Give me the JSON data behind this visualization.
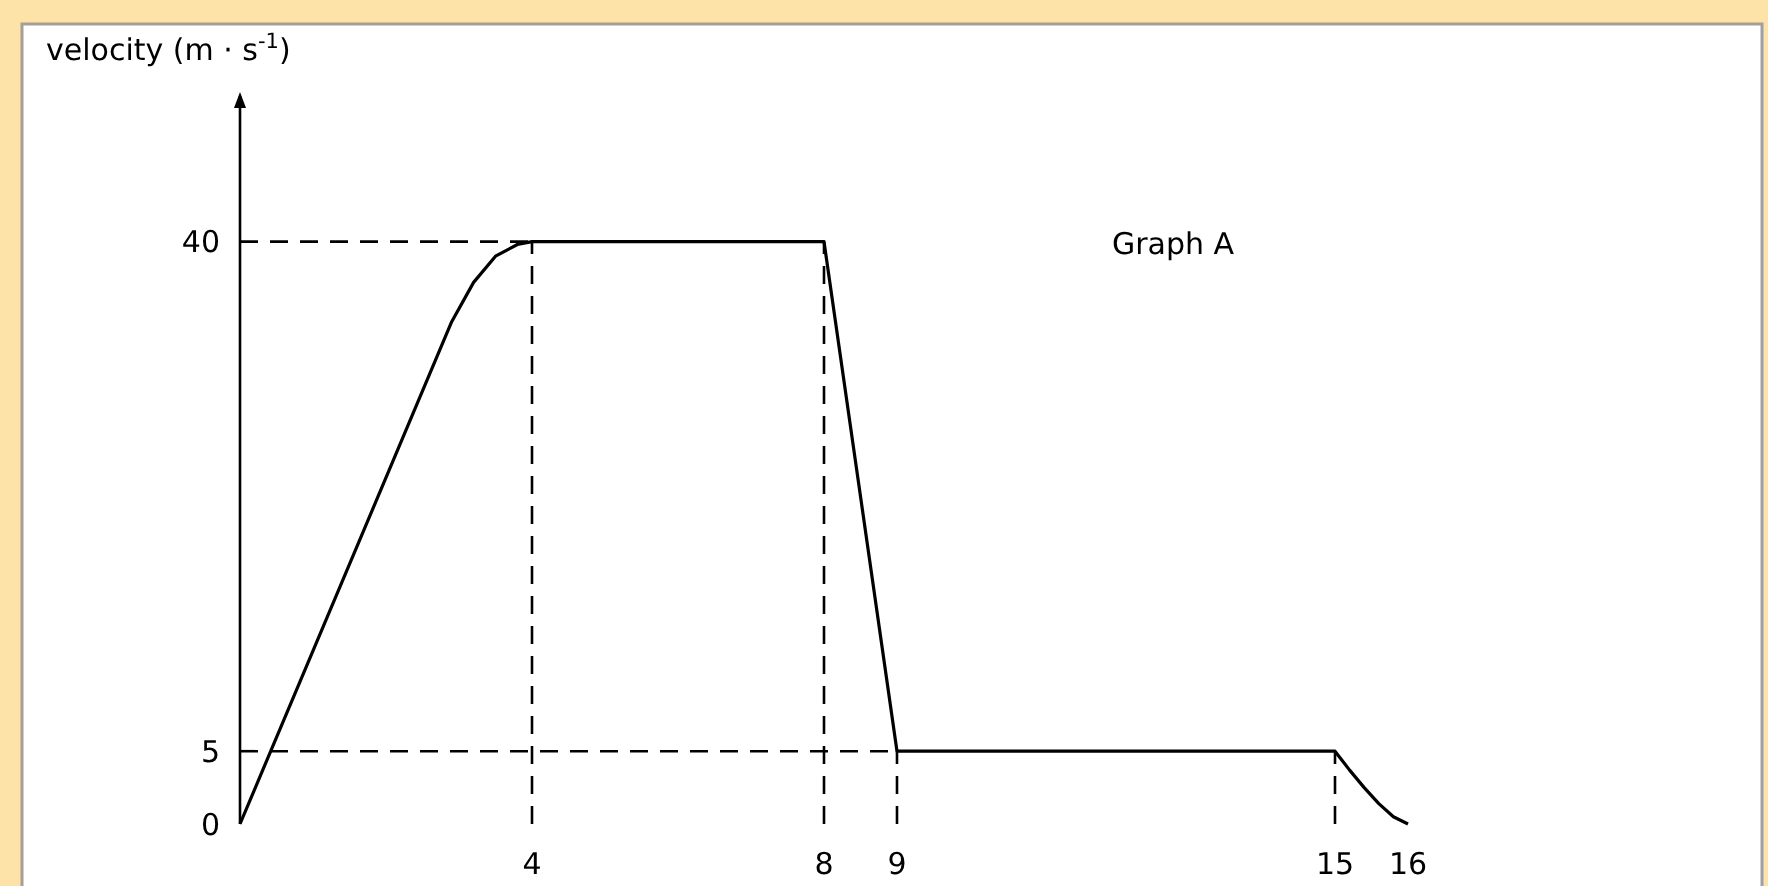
{
  "chart_data": {
    "type": "line",
    "ylabel": "velocity (m · s$^{-1}$)",
    "annotations": [
      "Graph A"
    ],
    "x": [
      0,
      2.9,
      3.2,
      3.5,
      3.8,
      4,
      8,
      9,
      15,
      15.2,
      15.4,
      15.6,
      15.8,
      16
    ],
    "series": [
      {
        "color": "#000000",
        "values": [
          0,
          34.5,
          37.2,
          39,
          39.8,
          40,
          40,
          5,
          5,
          3.7,
          2.5,
          1.4,
          0.5,
          0
        ]
      }
    ],
    "xlim": [
      0,
      16
    ],
    "ylim": [
      0,
      50
    ],
    "xticks": [
      4,
      8,
      9,
      15,
      16
    ],
    "yticks": [
      0,
      5,
      40
    ],
    "ref_lines": [
      {
        "axis": "y",
        "value": 40,
        "line_style": "dashed"
      },
      {
        "axis": "y",
        "value": 5,
        "line_style": "dashed"
      },
      {
        "axis": "x",
        "value": 4,
        "line_style": "dashed"
      },
      {
        "axis": "x",
        "value": 8,
        "line_style": "dashed"
      },
      {
        "axis": "x",
        "value": 9,
        "line_style": "dashed"
      },
      {
        "axis": "x",
        "value": 15,
        "line_style": "dashed"
      }
    ],
    "marker": "none",
    "line_style": "solid"
  }
}
